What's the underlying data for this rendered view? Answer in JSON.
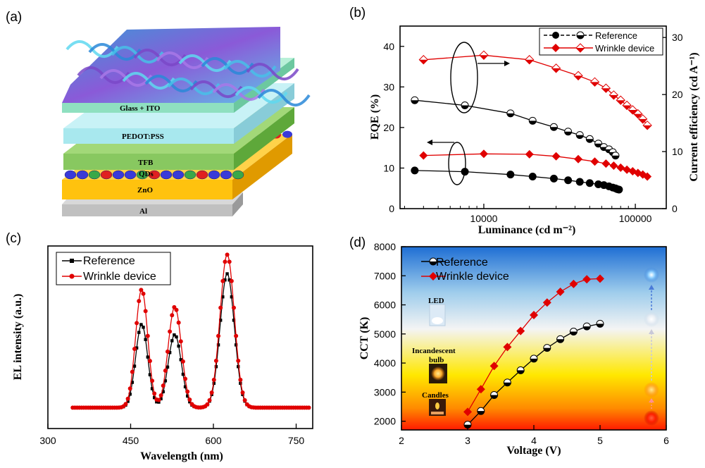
{
  "panels": {
    "a": "(a)",
    "b": "(b)",
    "c": "(c)",
    "d": "(d)"
  },
  "device_layers": [
    "Glass + ITO",
    "PEDOT:PSS",
    "TFB",
    "QDs",
    "ZnO",
    "Al"
  ],
  "colors": {
    "reference": "#000000",
    "wrinkle": "#ff0000",
    "glass": "#8fe0c0",
    "pedot": "#a8e8ee",
    "tfb": "#88c860",
    "zno": "#ffc20e",
    "al": "#c0c0c0"
  },
  "chart_data": [
    {
      "panel": "b",
      "type": "scatter",
      "xlabel": "Luminance (cd m⁻²)",
      "ylabel": "EQE (%)",
      "ylabel_right": "Current efficiency (cd A⁻¹)",
      "x_scale": "log",
      "xlim": [
        2800,
        160000
      ],
      "ylim": [
        0,
        45
      ],
      "ylim_right": [
        0,
        32
      ],
      "x_ticks": [
        "10000",
        "100000"
      ],
      "y_ticks": [
        "0",
        "10",
        "20",
        "30",
        "40"
      ],
      "y_ticks_right": [
        "0",
        "10",
        "20",
        "30"
      ],
      "legend": [
        "Reference",
        "Wrinkle device"
      ],
      "legend_position": "top-right",
      "series": [
        {
          "name": "Reference",
          "axis": "left",
          "x": [
            3500,
            7500,
            15000,
            21000,
            29000,
            36000,
            43000,
            50000,
            57000,
            62000,
            67000,
            71000,
            74000,
            76000,
            78000
          ],
          "y": [
            9.4,
            9.1,
            8.4,
            7.9,
            7.4,
            7.0,
            6.6,
            6.3,
            6.0,
            5.8,
            5.5,
            5.2,
            5.0,
            4.8,
            4.7
          ]
        },
        {
          "name": "Wrinkle device",
          "axis": "left",
          "x": [
            4000,
            10000,
            20000,
            30000,
            42000,
            54000,
            64000,
            72000,
            80000,
            88000,
            96000,
            104000,
            112000,
            120000
          ],
          "y": [
            13.1,
            13.5,
            13.4,
            12.9,
            12.2,
            11.6,
            11.1,
            10.6,
            10.1,
            9.6,
            9.2,
            8.8,
            8.4,
            7.9
          ]
        },
        {
          "name": "Reference",
          "axis": "right",
          "x": [
            3500,
            7500,
            15000,
            21000,
            29000,
            36000,
            43000,
            50000,
            57000,
            62000,
            67000,
            71000,
            74000
          ],
          "y": [
            19.0,
            18.1,
            16.7,
            15.4,
            14.3,
            13.5,
            12.9,
            12.2,
            11.4,
            10.8,
            10.4,
            9.9,
            9.3
          ]
        },
        {
          "name": "Wrinkle device",
          "axis": "right",
          "x": [
            4000,
            10000,
            20000,
            30000,
            42000,
            54000,
            64000,
            72000,
            80000,
            88000,
            96000,
            104000,
            112000,
            120000
          ],
          "y": [
            26.1,
            26.9,
            26.1,
            24.6,
            23.3,
            22.2,
            21.1,
            19.9,
            19.0,
            18.1,
            17.3,
            16.6,
            15.7,
            14.6
          ]
        }
      ]
    },
    {
      "panel": "c",
      "type": "line",
      "xlabel": "Wavelength (nm)",
      "ylabel": "EL intensity (a.u.)",
      "xlim": [
        300,
        780
      ],
      "x_ticks": [
        "300",
        "450",
        "600",
        "750"
      ],
      "legend": [
        "Reference",
        "Wrinkle device"
      ],
      "legend_position": "top-left",
      "peaks_nm": [
        470,
        530,
        625
      ],
      "series": [
        {
          "name": "Reference",
          "peak_heights": [
            0.48,
            0.42,
            0.77
          ]
        },
        {
          "name": "Wrinkle device",
          "peak_heights": [
            0.68,
            0.58,
            0.88
          ]
        }
      ]
    },
    {
      "panel": "d",
      "type": "line",
      "xlabel": "Voltage (V)",
      "ylabel": "CCT (K)",
      "xlim": [
        2,
        6
      ],
      "ylim": [
        1700,
        8000
      ],
      "x_ticks": [
        "2",
        "3",
        "4",
        "5",
        "6"
      ],
      "y_ticks": [
        "2000",
        "3000",
        "4000",
        "5000",
        "6000",
        "7000",
        "8000"
      ],
      "legend": [
        "Reference",
        "Wrinkle device"
      ],
      "legend_position": "top-left",
      "annotations": [
        "LED",
        "Incandescent",
        "bulb",
        "Candles"
      ],
      "series": [
        {
          "name": "Reference",
          "x": [
            3.0,
            3.2,
            3.4,
            3.6,
            3.8,
            4.0,
            4.2,
            4.4,
            4.6,
            4.8,
            5.0
          ],
          "y": [
            1880,
            2350,
            2900,
            3330,
            3750,
            4150,
            4520,
            4820,
            5080,
            5260,
            5350
          ]
        },
        {
          "name": "Wrinkle device",
          "x": [
            3.0,
            3.2,
            3.4,
            3.6,
            3.8,
            4.0,
            4.2,
            4.4,
            4.6,
            4.8,
            5.0
          ],
          "y": [
            2320,
            3100,
            3900,
            4550,
            5100,
            5650,
            6080,
            6450,
            6720,
            6880,
            6900
          ]
        }
      ]
    }
  ]
}
